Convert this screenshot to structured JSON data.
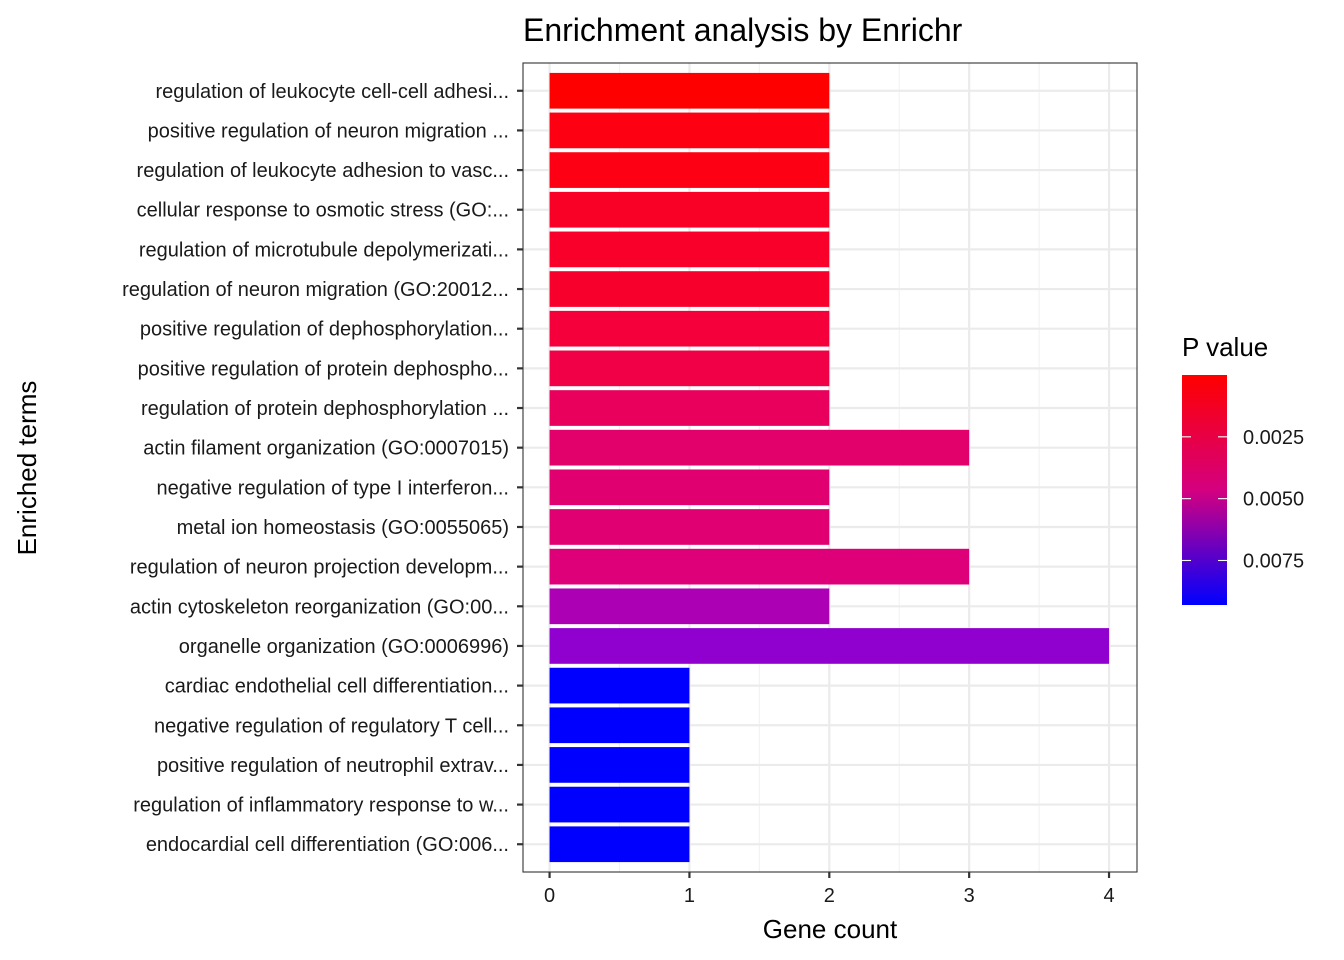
{
  "chart_data": {
    "type": "bar",
    "orientation": "horizontal",
    "title": "Enrichment analysis by Enrichr",
    "xlabel": "Gene count",
    "ylabel": "Enriched terms",
    "xlim": [
      -0.19,
      4.2
    ],
    "x_ticks": [
      0,
      1,
      2,
      3,
      4
    ],
    "x_tick_labels": [
      "0",
      "1",
      "2",
      "3",
      "4"
    ],
    "grid": true,
    "categories": [
      "regulation of leukocyte cell-cell adhesi...",
      "positive regulation of neuron migration ...",
      "regulation of leukocyte adhesion to vasc...",
      "cellular response to osmotic stress (GO:...",
      "regulation of microtubule depolymerizati...",
      "regulation of neuron migration (GO:20012...",
      "positive regulation of dephosphorylation...",
      "positive regulation of protein dephospho...",
      "regulation of protein dephosphorylation ...",
      "actin filament organization (GO:0007015)",
      "negative regulation of type I interferon...",
      "metal ion homeostasis (GO:0055065)",
      "regulation of neuron projection developm...",
      "actin cytoskeleton reorganization (GO:00...",
      "organelle organization (GO:0006996)",
      "cardiac endothelial cell differentiation...",
      "negative regulation of regulatory T cell...",
      "positive regulation of neutrophil extrav...",
      "regulation of inflammatory response to w...",
      "endocardial cell differentiation (GO:006..."
    ],
    "values": [
      2,
      2,
      2,
      2,
      2,
      2,
      2,
      2,
      2,
      3,
      2,
      2,
      3,
      2,
      4,
      1,
      1,
      1,
      1,
      1
    ],
    "fill_colors": [
      "#ff0000",
      "#fd0011",
      "#fd0013",
      "#f90026",
      "#f8002a",
      "#f7002c",
      "#f5003a",
      "#f20047",
      "#e8005c",
      "#e2006b",
      "#e10070",
      "#e10071",
      "#dd0079",
      "#ac00b4",
      "#9000cf",
      "#0000ff",
      "#0000ff",
      "#0000ff",
      "#0000ff",
      "#0000ff"
    ],
    "legend": {
      "title": "P value",
      "placement": "right",
      "gradient_top_color": "#ff0000",
      "gradient_bottom_color": "#0000ff",
      "range": [
        0.0,
        0.0093
      ],
      "ticks": [
        0.0025,
        0.005,
        0.0075
      ],
      "tick_labels": [
        "0.0025",
        "0.0050",
        "0.0075"
      ]
    }
  }
}
